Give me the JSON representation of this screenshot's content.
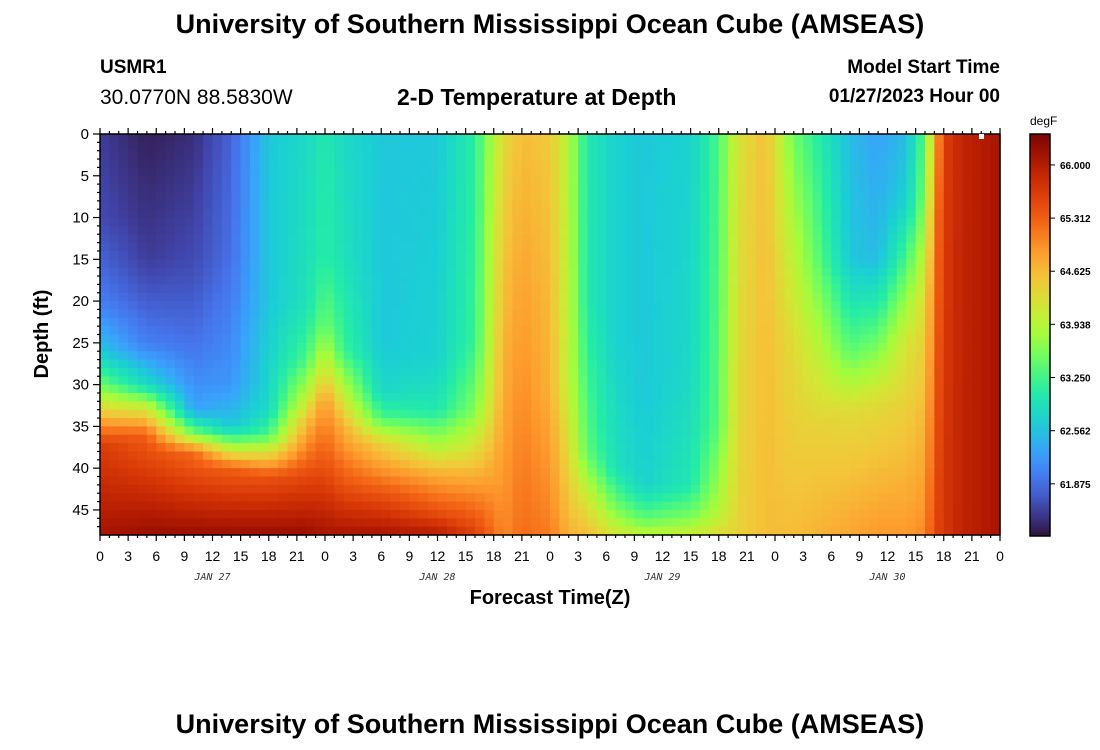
{
  "header": {
    "title": "University of Southern Mississippi Ocean Cube (AMSEAS)",
    "station": "USMR1",
    "coords": "30.0770N  88.5830W",
    "subtitle": "2-D Temperature at Depth",
    "model_start_label": "Model Start Time",
    "model_start_value": "01/27/2023 Hour 00"
  },
  "footer": {
    "title": "University of Southern Mississippi Ocean Cube (AMSEAS)"
  },
  "chart_data": {
    "type": "heatmap",
    "title": "2-D Temperature at Depth",
    "xlabel": "Forecast Time(Z)",
    "ylabel": "Depth (ft)",
    "x_range_hours": [
      0,
      96
    ],
    "y_range_ft": [
      0,
      48
    ],
    "x_tick_labels": [
      "0",
      "3",
      "6",
      "9",
      "12",
      "15",
      "18",
      "21",
      "0",
      "3",
      "6",
      "9",
      "12",
      "15",
      "18",
      "21",
      "0",
      "3",
      "6",
      "9",
      "12",
      "15",
      "18",
      "21",
      "0",
      "3",
      "6",
      "9",
      "12",
      "15",
      "18",
      "21",
      "0"
    ],
    "day_labels": [
      {
        "label": "JAN 27",
        "hour": 12
      },
      {
        "label": "JAN 28",
        "hour": 36
      },
      {
        "label": "JAN 29",
        "hour": 60
      },
      {
        "label": "JAN 30",
        "hour": 84
      }
    ],
    "y_ticks": [
      0,
      5,
      10,
      15,
      20,
      25,
      30,
      35,
      40,
      45
    ],
    "colorbar": {
      "unit": "degF",
      "ticks": [
        "66.000",
        "65.312",
        "64.625",
        "63.938",
        "63.250",
        "62.562",
        "61.875"
      ],
      "range": [
        61.2,
        66.4
      ]
    },
    "profiles": [
      {
        "hour": 0,
        "points": [
          [
            0,
            61.5
          ],
          [
            10,
            61.6
          ],
          [
            20,
            62.0
          ],
          [
            26,
            62.6
          ],
          [
            30,
            63.5
          ],
          [
            33,
            64.4
          ],
          [
            37,
            65.6
          ],
          [
            48,
            66.1
          ]
        ]
      },
      {
        "hour": 5,
        "points": [
          [
            0,
            61.3
          ],
          [
            15,
            61.5
          ],
          [
            25,
            62.0
          ],
          [
            30,
            62.8
          ],
          [
            33,
            64.2
          ],
          [
            36,
            65.3
          ],
          [
            48,
            66.2
          ]
        ]
      },
      {
        "hour": 10,
        "points": [
          [
            0,
            61.4
          ],
          [
            15,
            61.6
          ],
          [
            25,
            61.9
          ],
          [
            33,
            62.3
          ],
          [
            36,
            63.6
          ],
          [
            38,
            65.2
          ],
          [
            48,
            66.2
          ]
        ]
      },
      {
        "hour": 14,
        "points": [
          [
            0,
            61.8
          ],
          [
            15,
            61.9
          ],
          [
            30,
            62.2
          ],
          [
            35,
            62.6
          ],
          [
            37,
            63.6
          ],
          [
            40,
            65.3
          ],
          [
            48,
            66.2
          ]
        ]
      },
      {
        "hour": 18,
        "points": [
          [
            0,
            62.6
          ],
          [
            20,
            62.6
          ],
          [
            33,
            62.8
          ],
          [
            36,
            63.3
          ],
          [
            38,
            64.2
          ],
          [
            41,
            65.4
          ],
          [
            48,
            66.2
          ]
        ]
      },
      {
        "hour": 22,
        "points": [
          [
            0,
            62.8
          ],
          [
            20,
            62.9
          ],
          [
            27,
            63.3
          ],
          [
            31,
            63.9
          ],
          [
            35,
            64.7
          ],
          [
            41,
            65.5
          ],
          [
            48,
            66.2
          ]
        ]
      },
      {
        "hour": 24,
        "points": [
          [
            0,
            63.0
          ],
          [
            15,
            63.1
          ],
          [
            23,
            63.5
          ],
          [
            28,
            64.2
          ],
          [
            32,
            64.9
          ],
          [
            38,
            65.3
          ],
          [
            48,
            66.1
          ]
        ]
      },
      {
        "hour": 26,
        "points": [
          [
            0,
            62.8
          ],
          [
            15,
            62.9
          ],
          [
            26,
            63.2
          ],
          [
            31,
            64.0
          ],
          [
            35,
            64.7
          ],
          [
            42,
            65.4
          ],
          [
            48,
            66.1
          ]
        ]
      },
      {
        "hour": 30,
        "points": [
          [
            0,
            62.6
          ],
          [
            25,
            62.6
          ],
          [
            31,
            62.8
          ],
          [
            34,
            63.3
          ],
          [
            37,
            64.4
          ],
          [
            43,
            65.4
          ],
          [
            48,
            66.1
          ]
        ]
      },
      {
        "hour": 36,
        "points": [
          [
            0,
            62.6
          ],
          [
            27,
            62.7
          ],
          [
            33,
            63.0
          ],
          [
            37,
            63.8
          ],
          [
            41,
            64.8
          ],
          [
            45,
            65.4
          ],
          [
            48,
            66.0
          ]
        ]
      },
      {
        "hour": 40,
        "points": [
          [
            0,
            63.1
          ],
          [
            25,
            63.2
          ],
          [
            33,
            63.6
          ],
          [
            38,
            64.3
          ],
          [
            43,
            65.0
          ],
          [
            48,
            65.6
          ]
        ]
      },
      {
        "hour": 43,
        "points": [
          [
            0,
            64.3
          ],
          [
            48,
            65.0
          ]
        ]
      },
      {
        "hour": 45,
        "points": [
          [
            0,
            64.6
          ],
          [
            48,
            65.2
          ]
        ]
      },
      {
        "hour": 48,
        "points": [
          [
            0,
            64.5
          ],
          [
            30,
            64.7
          ],
          [
            48,
            65.1
          ]
        ]
      },
      {
        "hour": 50,
        "points": [
          [
            0,
            63.9
          ],
          [
            30,
            64.0
          ],
          [
            48,
            64.7
          ]
        ]
      },
      {
        "hour": 52,
        "points": [
          [
            0,
            63.0
          ],
          [
            20,
            63.0
          ],
          [
            38,
            63.4
          ],
          [
            45,
            64.3
          ],
          [
            48,
            64.6
          ]
        ]
      },
      {
        "hour": 55,
        "points": [
          [
            0,
            62.7
          ],
          [
            25,
            62.7
          ],
          [
            40,
            62.9
          ],
          [
            45,
            63.6
          ],
          [
            48,
            64.2
          ]
        ]
      },
      {
        "hour": 58,
        "points": [
          [
            0,
            62.6
          ],
          [
            30,
            62.6
          ],
          [
            42,
            62.7
          ],
          [
            46,
            63.4
          ],
          [
            48,
            64.0
          ]
        ]
      },
      {
        "hour": 63,
        "points": [
          [
            0,
            62.7
          ],
          [
            30,
            62.8
          ],
          [
            42,
            63.0
          ],
          [
            46,
            63.6
          ],
          [
            48,
            64.1
          ]
        ]
      },
      {
        "hour": 66,
        "points": [
          [
            0,
            63.3
          ],
          [
            35,
            63.4
          ],
          [
            45,
            63.9
          ],
          [
            48,
            64.3
          ]
        ]
      },
      {
        "hour": 68,
        "points": [
          [
            0,
            64.2
          ],
          [
            48,
            64.4
          ]
        ]
      },
      {
        "hour": 71,
        "points": [
          [
            0,
            64.6
          ],
          [
            48,
            64.6
          ]
        ]
      },
      {
        "hour": 74,
        "points": [
          [
            0,
            63.5
          ],
          [
            12,
            63.9
          ],
          [
            25,
            64.3
          ],
          [
            48,
            64.6
          ]
        ]
      },
      {
        "hour": 77,
        "points": [
          [
            0,
            63.0
          ],
          [
            15,
            63.3
          ],
          [
            27,
            64.0
          ],
          [
            35,
            64.4
          ],
          [
            48,
            64.7
          ]
        ]
      },
      {
        "hour": 80,
        "points": [
          [
            0,
            62.5
          ],
          [
            15,
            62.6
          ],
          [
            26,
            63.4
          ],
          [
            33,
            64.3
          ],
          [
            48,
            64.8
          ]
        ]
      },
      {
        "hour": 83,
        "points": [
          [
            0,
            62.3
          ],
          [
            15,
            62.5
          ],
          [
            24,
            63.4
          ],
          [
            32,
            64.3
          ],
          [
            48,
            64.9
          ]
        ]
      },
      {
        "hour": 86,
        "points": [
          [
            0,
            62.5
          ],
          [
            8,
            62.7
          ],
          [
            15,
            63.3
          ],
          [
            25,
            64.2
          ],
          [
            48,
            64.9
          ]
        ]
      },
      {
        "hour": 88,
        "points": [
          [
            0,
            63.4
          ],
          [
            8,
            63.6
          ],
          [
            20,
            64.3
          ],
          [
            48,
            65.0
          ]
        ]
      },
      {
        "hour": 89,
        "points": [
          [
            0,
            64.6
          ],
          [
            10,
            65.0
          ],
          [
            30,
            65.3
          ],
          [
            48,
            65.5
          ]
        ]
      },
      {
        "hour": 90,
        "points": [
          [
            0,
            65.6
          ],
          [
            48,
            65.7
          ]
        ]
      },
      {
        "hour": 92,
        "points": [
          [
            0,
            65.9
          ],
          [
            48,
            65.9
          ]
        ]
      },
      {
        "hour": 96,
        "points": [
          [
            0,
            66.1
          ],
          [
            48,
            66.1
          ]
        ]
      }
    ]
  }
}
